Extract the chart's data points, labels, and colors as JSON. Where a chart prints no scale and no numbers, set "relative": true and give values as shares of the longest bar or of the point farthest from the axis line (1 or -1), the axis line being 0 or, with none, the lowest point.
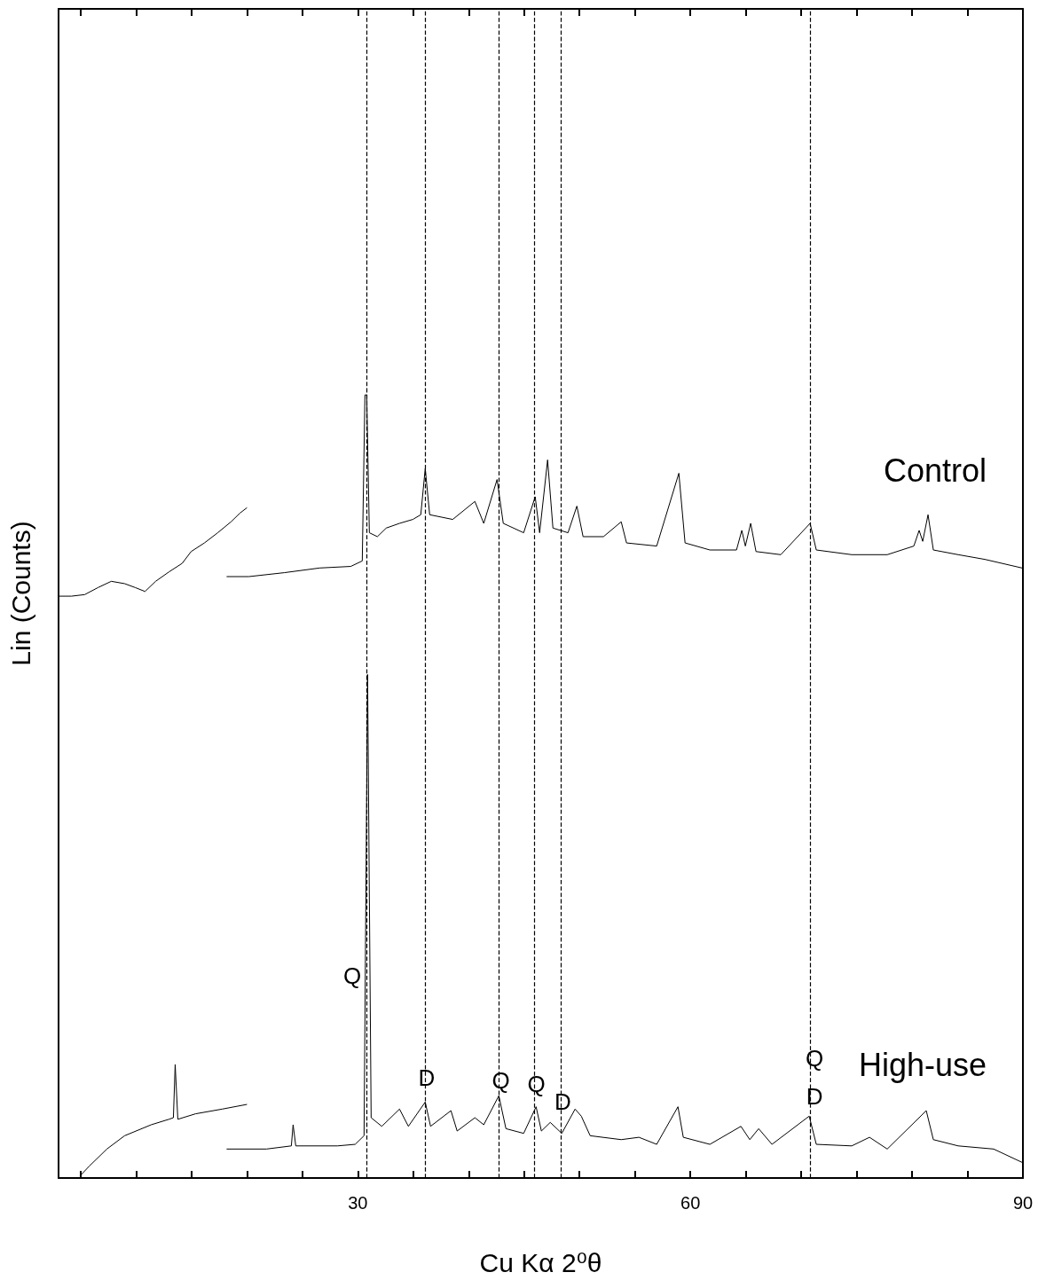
{
  "chart_data": {
    "type": "line",
    "relative": true,
    "xlabel": "Cu Kα 2⁰θ",
    "ylabel": "Lin (Counts)",
    "xlim": [
      3,
      90
    ],
    "xticks": [
      {
        "value": 5,
        "label": null
      },
      {
        "value": 10,
        "label": null
      },
      {
        "value": 15,
        "label": null
      },
      {
        "value": 20,
        "label": null
      },
      {
        "value": 25,
        "label": null
      },
      30,
      {
        "value": 35,
        "label": null
      },
      {
        "value": 40,
        "label": null
      },
      {
        "value": 45,
        "label": null
      },
      {
        "value": 50,
        "label": null
      },
      {
        "value": 55,
        "label": null
      },
      60,
      {
        "value": 65,
        "label": null
      },
      {
        "value": 70,
        "label": null
      },
      {
        "value": 75,
        "label": null
      },
      {
        "value": 80,
        "label": null
      },
      {
        "value": 85,
        "label": null
      },
      90
    ],
    "tick_labels": "x",
    "grid": false,
    "legend": false,
    "marker": "none",
    "line_style": "solid",
    "series": [
      {
        "name": "Control",
        "color": "#000000",
        "x": [
          3.04,
          4.16,
          5.36,
          6.56,
          7.76,
          8.96,
          9.92,
          10.8,
          11.76,
          12.96,
          14.16,
          14.96,
          16.16,
          17.36,
          18.56,
          19.36,
          20.0,
          null,
          18.16,
          20.16,
          23.36,
          26.56,
          29.36,
          30.4,
          30.64,
          30.8,
          31.04,
          31.76,
          32.56,
          33.76,
          34.96,
          35.68,
          36.08,
          36.48,
          38.56,
          40.56,
          41.36,
          42.56,
          43.12,
          44.96,
          46.0,
          46.4,
          47.12,
          47.6,
          48.96,
          49.76,
          50.32,
          52.16,
          53.76,
          54.24,
          56.96,
          58.96,
          59.52,
          61.76,
          64.16,
          64.64,
          64.96,
          65.44,
          65.92,
          68.16,
          70.8,
          71.36,
          74.56,
          77.76,
          80.16,
          80.64,
          80.96,
          81.44,
          81.92,
          84.16,
          86.56,
          89.92
        ],
        "values": [
          0.743,
          0.743,
          0.745,
          0.754,
          0.762,
          0.759,
          0.754,
          0.749,
          0.762,
          0.774,
          0.785,
          0.8,
          0.811,
          0.824,
          0.838,
          0.849,
          0.856,
          null,
          0.768,
          0.768,
          0.773,
          0.779,
          0.781,
          0.788,
          1.0,
          1.0,
          0.824,
          0.819,
          0.83,
          0.836,
          0.841,
          0.847,
          0.906,
          0.847,
          0.841,
          0.864,
          0.836,
          0.892,
          0.836,
          0.824,
          0.87,
          0.824,
          0.917,
          0.83,
          0.824,
          0.858,
          0.819,
          0.819,
          0.838,
          0.811,
          0.807,
          0.9,
          0.811,
          0.802,
          0.802,
          0.827,
          0.807,
          0.836,
          0.8,
          0.796,
          0.836,
          0.802,
          0.796,
          0.796,
          0.807,
          0.827,
          0.813,
          0.847,
          0.802,
          0.796,
          0.79,
          0.779
        ]
      },
      {
        "name": "High-use",
        "color": "#000000",
        "x": [
          4.96,
          5.76,
          7.36,
          8.96,
          11.36,
          12.96,
          13.36,
          13.52,
          13.76,
          15.36,
          17.76,
          20.0,
          null,
          18.16,
          21.76,
          24.0,
          24.16,
          24.4,
          28.16,
          29.76,
          30.56,
          30.88,
          31.2,
          32.16,
          33.76,
          34.56,
          36.08,
          36.56,
          38.4,
          38.96,
          40.56,
          41.36,
          42.72,
          43.36,
          44.96,
          46.08,
          46.56,
          47.36,
          48.4,
          49.6,
          50.16,
          50.96,
          53.76,
          55.36,
          56.96,
          58.88,
          59.36,
          61.76,
          64.56,
          65.36,
          66.16,
          67.36,
          70.72,
          71.36,
          74.56,
          76.16,
          77.76,
          81.28,
          81.92,
          84.16,
          87.36,
          89.92
        ],
        "values": [
          0.003,
          0.015,
          0.037,
          0.054,
          0.068,
          0.075,
          0.077,
          0.145,
          0.075,
          0.082,
          0.088,
          0.094,
          null,
          0.037,
          0.037,
          0.041,
          0.068,
          0.041,
          0.041,
          0.043,
          0.054,
          0.643,
          0.077,
          0.066,
          0.088,
          0.066,
          0.097,
          0.066,
          0.086,
          0.06,
          0.077,
          0.068,
          0.105,
          0.063,
          0.057,
          0.091,
          0.06,
          0.071,
          0.057,
          0.088,
          0.079,
          0.054,
          0.049,
          0.052,
          0.043,
          0.091,
          0.052,
          0.043,
          0.066,
          0.049,
          0.063,
          0.043,
          0.079,
          0.043,
          0.041,
          0.052,
          0.037,
          0.086,
          0.049,
          0.041,
          0.037,
          0.02
        ]
      }
    ],
    "ref_lines": [
      {
        "axis": "x",
        "value": 30.8,
        "color": "#000000",
        "line_style": "dashed"
      },
      {
        "axis": "x",
        "value": 36.1,
        "color": "#000000",
        "line_style": "dashed"
      },
      {
        "axis": "x",
        "value": 42.7,
        "color": "#000000",
        "line_style": "dashed"
      },
      {
        "axis": "x",
        "value": 45.9,
        "color": "#000000",
        "line_style": "dashed"
      },
      {
        "axis": "x",
        "value": 48.3,
        "color": "#000000",
        "line_style": "dashed"
      },
      {
        "axis": "x",
        "value": 70.8,
        "color": "#000000",
        "line_style": "dashed"
      }
    ],
    "annotations": [
      {
        "text": "Q",
        "x": 30.8,
        "y": 0.258
      },
      {
        "text": "D",
        "x": 36.2,
        "y": 0.128
      },
      {
        "text": "Q",
        "x": 42.9,
        "y": 0.125
      },
      {
        "text": "Q",
        "x": 46.1,
        "y": 0.12
      },
      {
        "text": "D",
        "x": 48.5,
        "y": 0.097
      },
      {
        "text": "Q",
        "x": 71.2,
        "y": 0.153
      },
      {
        "text": "D",
        "x": 71.2,
        "y": 0.104
      }
    ]
  }
}
